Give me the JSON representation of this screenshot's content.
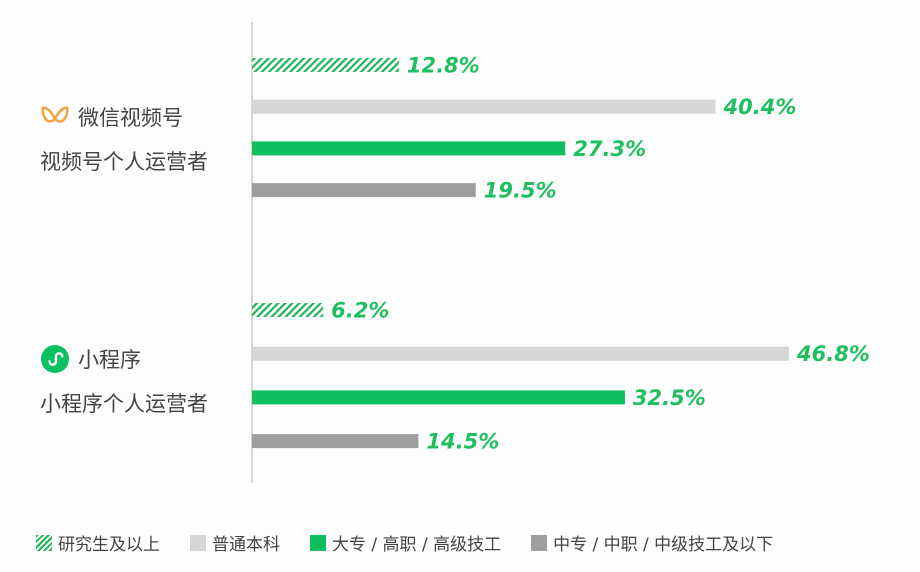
{
  "chart_data": {
    "type": "bar",
    "orientation": "horizontal",
    "categories": [
      "视频号个人运营者",
      "小程序个人运营者"
    ],
    "groups": [
      {
        "platform": "微信视频号",
        "category": "视频号个人运营者",
        "icon": "channels-icon"
      },
      {
        "platform": "小程序",
        "category": "小程序个人运营者",
        "icon": "mini-program-icon"
      }
    ],
    "series": [
      {
        "name": "研究生及以上",
        "values": [
          12.8,
          6.2
        ],
        "color": "#1db45a",
        "pattern": "hatch"
      },
      {
        "name": "普通本科",
        "values": [
          40.4,
          46.8
        ],
        "color": "#d6d6d6"
      },
      {
        "name": "大专 / 高职 / 高级技工",
        "values": [
          27.3,
          32.5
        ],
        "color": "#0fbe5e"
      },
      {
        "name": "中专 / 中职 / 中级技工及以下",
        "values": [
          19.5,
          14.5
        ],
        "color": "#9e9e9e"
      }
    ],
    "value_suffix": "%",
    "label_color": "#1fbf60",
    "xlim": [
      0,
      50
    ],
    "grid": false,
    "legend_position": "bottom"
  }
}
